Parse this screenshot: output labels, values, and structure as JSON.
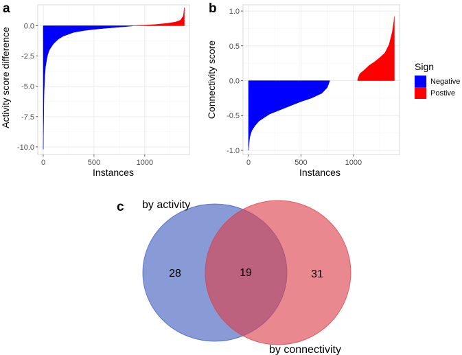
{
  "panels": {
    "a": "a",
    "b": "b",
    "c": "c"
  },
  "chart_data": [
    {
      "id": "a",
      "type": "bar",
      "xlabel": "Instances",
      "ylabel": "Activity score difference",
      "xlim": [
        0,
        1400
      ],
      "ylim": [
        -10.4,
        1.5
      ],
      "xticks": [
        0,
        500,
        1000
      ],
      "xtick_labels": [
        "0",
        "500",
        "1000"
      ],
      "yticks": [
        -10,
        -7.5,
        -5,
        -2.5,
        0
      ],
      "ytick_labels": [
        "-10.0",
        "-7.5",
        "-5.0",
        "-2.5",
        "0.0"
      ],
      "grid": true,
      "n_instances": 1390,
      "series": [
        {
          "name": "Negative",
          "color": "#0000ff",
          "x": [
            0,
            5,
            10,
            20,
            40,
            60,
            100,
            150,
            200,
            300,
            400,
            500,
            600,
            700,
            800,
            880
          ],
          "y": [
            -10.2,
            -6.5,
            -4.8,
            -3.5,
            -2.5,
            -2.0,
            -1.5,
            -1.1,
            -0.85,
            -0.55,
            -0.4,
            -0.3,
            -0.22,
            -0.15,
            -0.08,
            -0.02
          ]
        },
        {
          "name": "Postive",
          "color": "#ff0000",
          "x": [
            880,
            950,
            1000,
            1100,
            1200,
            1300,
            1350,
            1380,
            1390
          ],
          "y": [
            0.01,
            0.03,
            0.05,
            0.1,
            0.18,
            0.3,
            0.45,
            0.8,
            1.5
          ]
        }
      ]
    },
    {
      "id": "b",
      "type": "bar",
      "xlabel": "Instances",
      "ylabel": "Connectivity score",
      "xlim": [
        0,
        1400
      ],
      "ylim": [
        -1.02,
        1.05
      ],
      "xticks": [
        0,
        500,
        1000
      ],
      "xtick_labels": [
        "0",
        "500",
        "1000"
      ],
      "yticks": [
        -1.0,
        -0.5,
        0.0,
        0.5,
        1.0
      ],
      "ytick_labels": [
        "-1.0",
        "-0.5",
        "0.0",
        "0.5",
        "1.0"
      ],
      "grid": true,
      "n_instances": 1390,
      "series": [
        {
          "name": "Negative",
          "color": "#0000ff",
          "x": [
            0,
            10,
            30,
            60,
            100,
            200,
            300,
            400,
            500,
            600,
            700,
            750,
            775
          ],
          "y": [
            -1.0,
            -0.82,
            -0.72,
            -0.65,
            -0.58,
            -0.48,
            -0.42,
            -0.36,
            -0.3,
            -0.25,
            -0.18,
            -0.1,
            0.0
          ]
        },
        {
          "name": "Postive",
          "color": "#ff0000",
          "x": [
            1040,
            1060,
            1100,
            1150,
            1200,
            1250,
            1300,
            1340,
            1370,
            1385,
            1390
          ],
          "y": [
            0.02,
            0.1,
            0.15,
            0.22,
            0.27,
            0.33,
            0.4,
            0.52,
            0.7,
            0.85,
            0.92
          ]
        }
      ]
    }
  ],
  "legend": {
    "title": "Sign",
    "placement": "right",
    "items": [
      {
        "label": "Negative",
        "color": "#0000ff"
      },
      {
        "label": "Postive",
        "color": "#ff0000"
      }
    ]
  },
  "venn": {
    "sets": [
      {
        "label": "by activity",
        "color": "#3f5dbd",
        "only_count": "28"
      },
      {
        "label": "by connectivity",
        "color": "#dc3f48",
        "only_count": "31"
      }
    ],
    "intersection_count": "19"
  }
}
